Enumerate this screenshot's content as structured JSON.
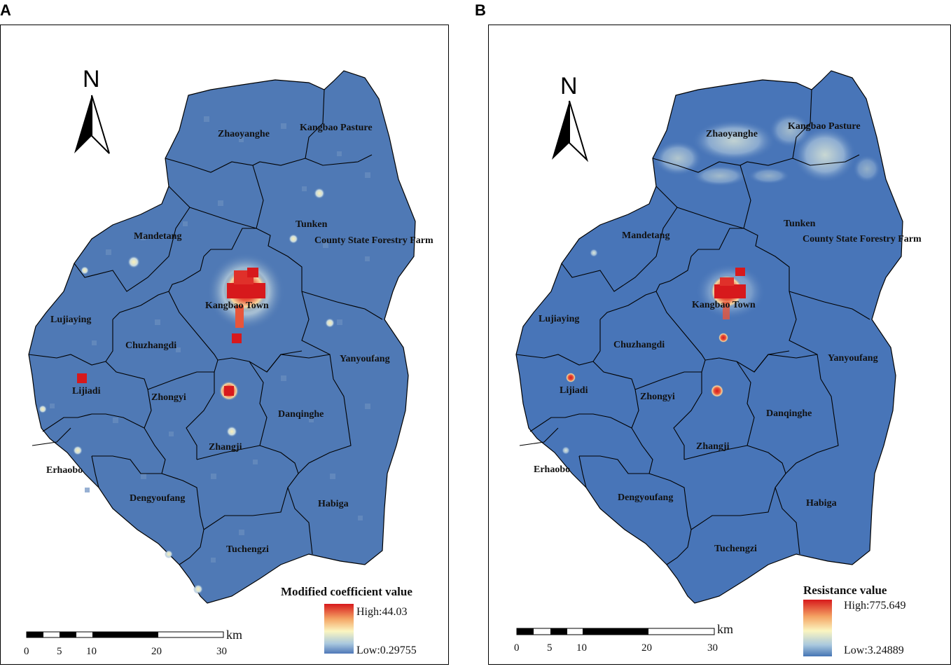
{
  "panels": [
    {
      "letter": "A",
      "legend_title": "Modified coefficient value",
      "legend_high": "High:44.03",
      "legend_low": "Low:0.29755",
      "north": "N",
      "scale_unit": "km",
      "scale_ticks": [
        "0",
        "5",
        "10",
        "20",
        "30"
      ],
      "towns": {
        "zhaoyanghe": "Zhaoyanghe",
        "kangbao_pasture": "Kangbao Pasture",
        "tunken": "Tunken",
        "county_state_forestry_farm": "County State Forestry Farm",
        "mandetang": "Mandetang",
        "kangbao_town": "Kangbao Town",
        "lujiaying": "Lujiaying",
        "chuzhangdi": "Chuzhangdi",
        "yanyoufang": "Yanyoufang",
        "lijiadi": "Lijiadi",
        "zhongyi": "Zhongyi",
        "danqinghe": "Danqinghe",
        "zhangji": "Zhangji",
        "erhaobo": "Erhaobo",
        "dengyoufang": "Dengyoufang",
        "habiga": "Habiga",
        "tuchengzi": "Tuchengzi"
      },
      "colors": {
        "base": "#4f79b5",
        "high": "#d7191c",
        "mid": "#fbf5c0",
        "low": "#4f78b8"
      }
    },
    {
      "letter": "B",
      "legend_title": "Resistance value",
      "legend_high": "High:775.649",
      "legend_low": "Low:3.24889",
      "north": "N",
      "scale_unit": "km",
      "scale_ticks": [
        "0",
        "5",
        "10",
        "20",
        "30"
      ],
      "towns": {
        "zhaoyanghe": "Zhaoyanghe",
        "kangbao_pasture": "Kangbao Pasture",
        "tunken": "Tunken",
        "county_state_forestry_farm": "County State Forestry Farm",
        "mandetang": "Mandetang",
        "kangbao_town": "Kangbao Town",
        "lujiaying": "Lujiaying",
        "chuzhangdi": "Chuzhangdi",
        "yanyoufang": "Yanyoufang",
        "lijiadi": "Lijiadi",
        "zhongyi": "Zhongyi",
        "danqinghe": "Danqinghe",
        "zhangji": "Zhangji",
        "erhaobo": "Erhaobo",
        "dengyoufang": "Dengyoufang",
        "habiga": "Habiga",
        "tuchengzi": "Tuchengzi"
      },
      "colors": {
        "base": "#4875b8",
        "high": "#d7191c",
        "mid": "#fbf5c0",
        "low": "#4575b4"
      }
    }
  ]
}
